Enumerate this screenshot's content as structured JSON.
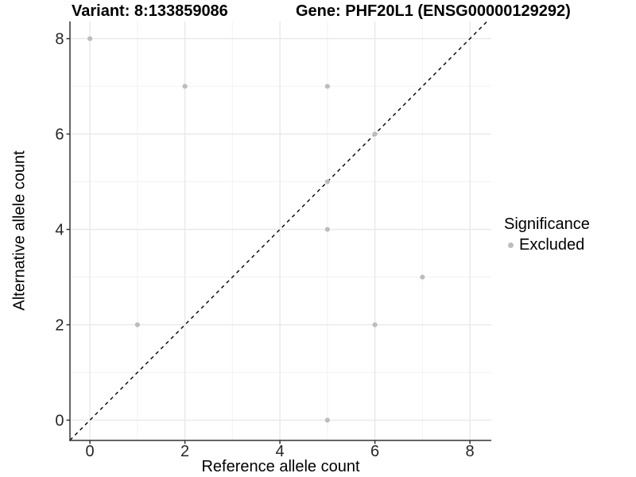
{
  "titles": {
    "variant": "Variant: 8:133859086",
    "gene": "Gene: PHF20L1 (ENSG00000129292)"
  },
  "axes": {
    "x_label": "Reference allele count",
    "y_label": "Alternative allele count"
  },
  "legend": {
    "title": "Significance",
    "items": [
      {
        "label": "Excluded",
        "color": "#bdbdbd"
      }
    ]
  },
  "chart_data": {
    "type": "scatter",
    "title": "Variant: 8:133859086   Gene: PHF20L1 (ENSG00000129292)",
    "xlabel": "Reference allele count",
    "ylabel": "Alternative allele count",
    "xlim": [
      -0.42,
      8.45
    ],
    "ylim": [
      -0.425,
      8.36
    ],
    "x_ticks": [
      0,
      2,
      4,
      6,
      8
    ],
    "y_ticks": [
      0,
      2,
      4,
      6,
      8
    ],
    "grid": {
      "on": true,
      "major_every": 2,
      "minor_every": 1,
      "int_range": [
        0,
        8
      ]
    },
    "series": [
      {
        "name": "Excluded",
        "color": "#bdbdbd",
        "points": [
          [
            0,
            8
          ],
          [
            1,
            2
          ],
          [
            2,
            7
          ],
          [
            5,
            0
          ],
          [
            5,
            4
          ],
          [
            5,
            5
          ],
          [
            5,
            7
          ],
          [
            6,
            2
          ],
          [
            6,
            6
          ],
          [
            7,
            3
          ]
        ]
      }
    ],
    "reference_line": {
      "equation": "y = x",
      "style": "dashed",
      "color": "#000000"
    },
    "legend": {
      "title": "Significance",
      "position": "right"
    },
    "colors": {
      "grid_major": "#e7e7e7",
      "grid_minor": "#f2f2f2",
      "axis_line": "#333333",
      "tick_text": "#262626"
    }
  }
}
